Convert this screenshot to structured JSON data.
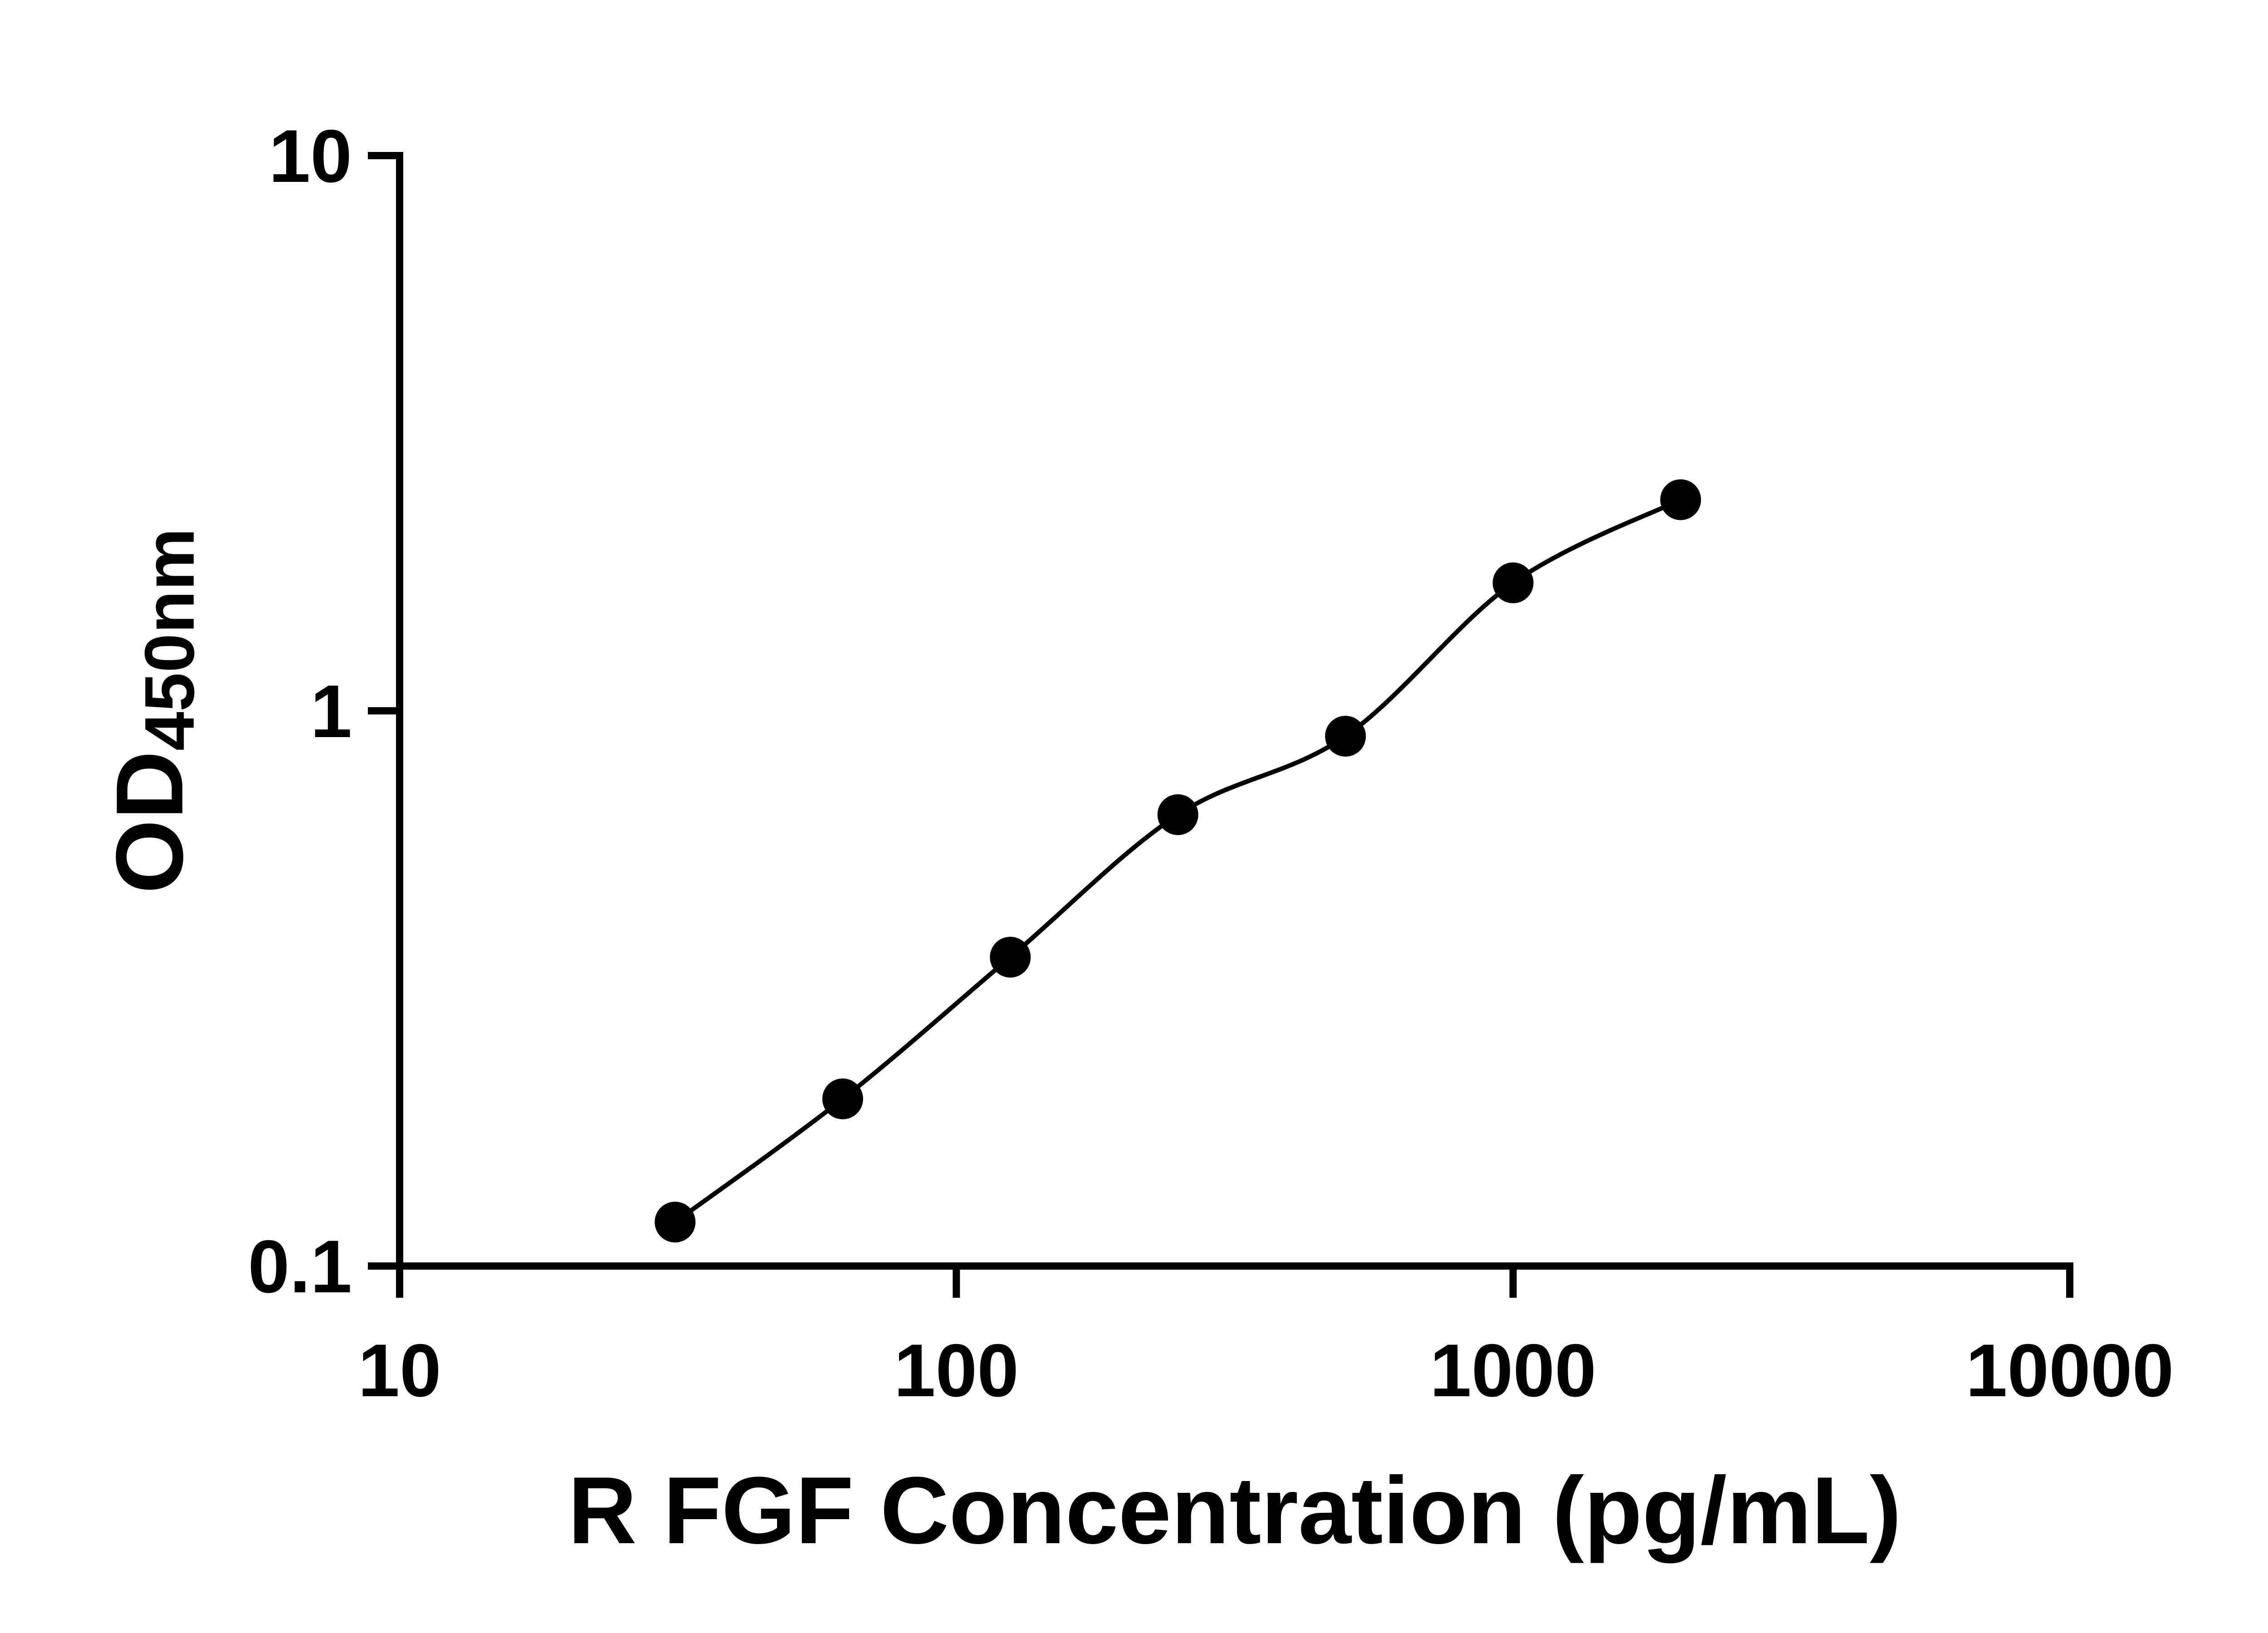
{
  "figure": {
    "background": "#ffffff"
  },
  "chart_data": {
    "type": "scatter",
    "title": "",
    "xlabel": "R FGF Concentration (pg/mL)",
    "ylabel": "OD",
    "ylabel_subscript": "450nm",
    "x_scale": "log10",
    "y_scale": "log10",
    "xlim": [
      10,
      10000
    ],
    "ylim": [
      0.1,
      10
    ],
    "x_ticks": [
      10,
      100,
      1000,
      10000
    ],
    "x_tick_labels": [
      "10",
      "100",
      "1000",
      "10000"
    ],
    "y_ticks": [
      10,
      1,
      0.1
    ],
    "y_tick_labels": [
      "10",
      "1",
      "0.1"
    ],
    "grid": false,
    "legend": false,
    "axis_color": "#000000",
    "series": [
      {
        "marker": "filled-circle",
        "marker_color": "#000000",
        "line_color": "#000000",
        "line_style": "smooth",
        "x": [
          31.25,
          62.5,
          125,
          250,
          500,
          1000,
          2000
        ],
        "y": [
          0.12,
          0.2,
          0.36,
          0.65,
          0.9,
          1.7,
          2.4
        ]
      }
    ]
  }
}
